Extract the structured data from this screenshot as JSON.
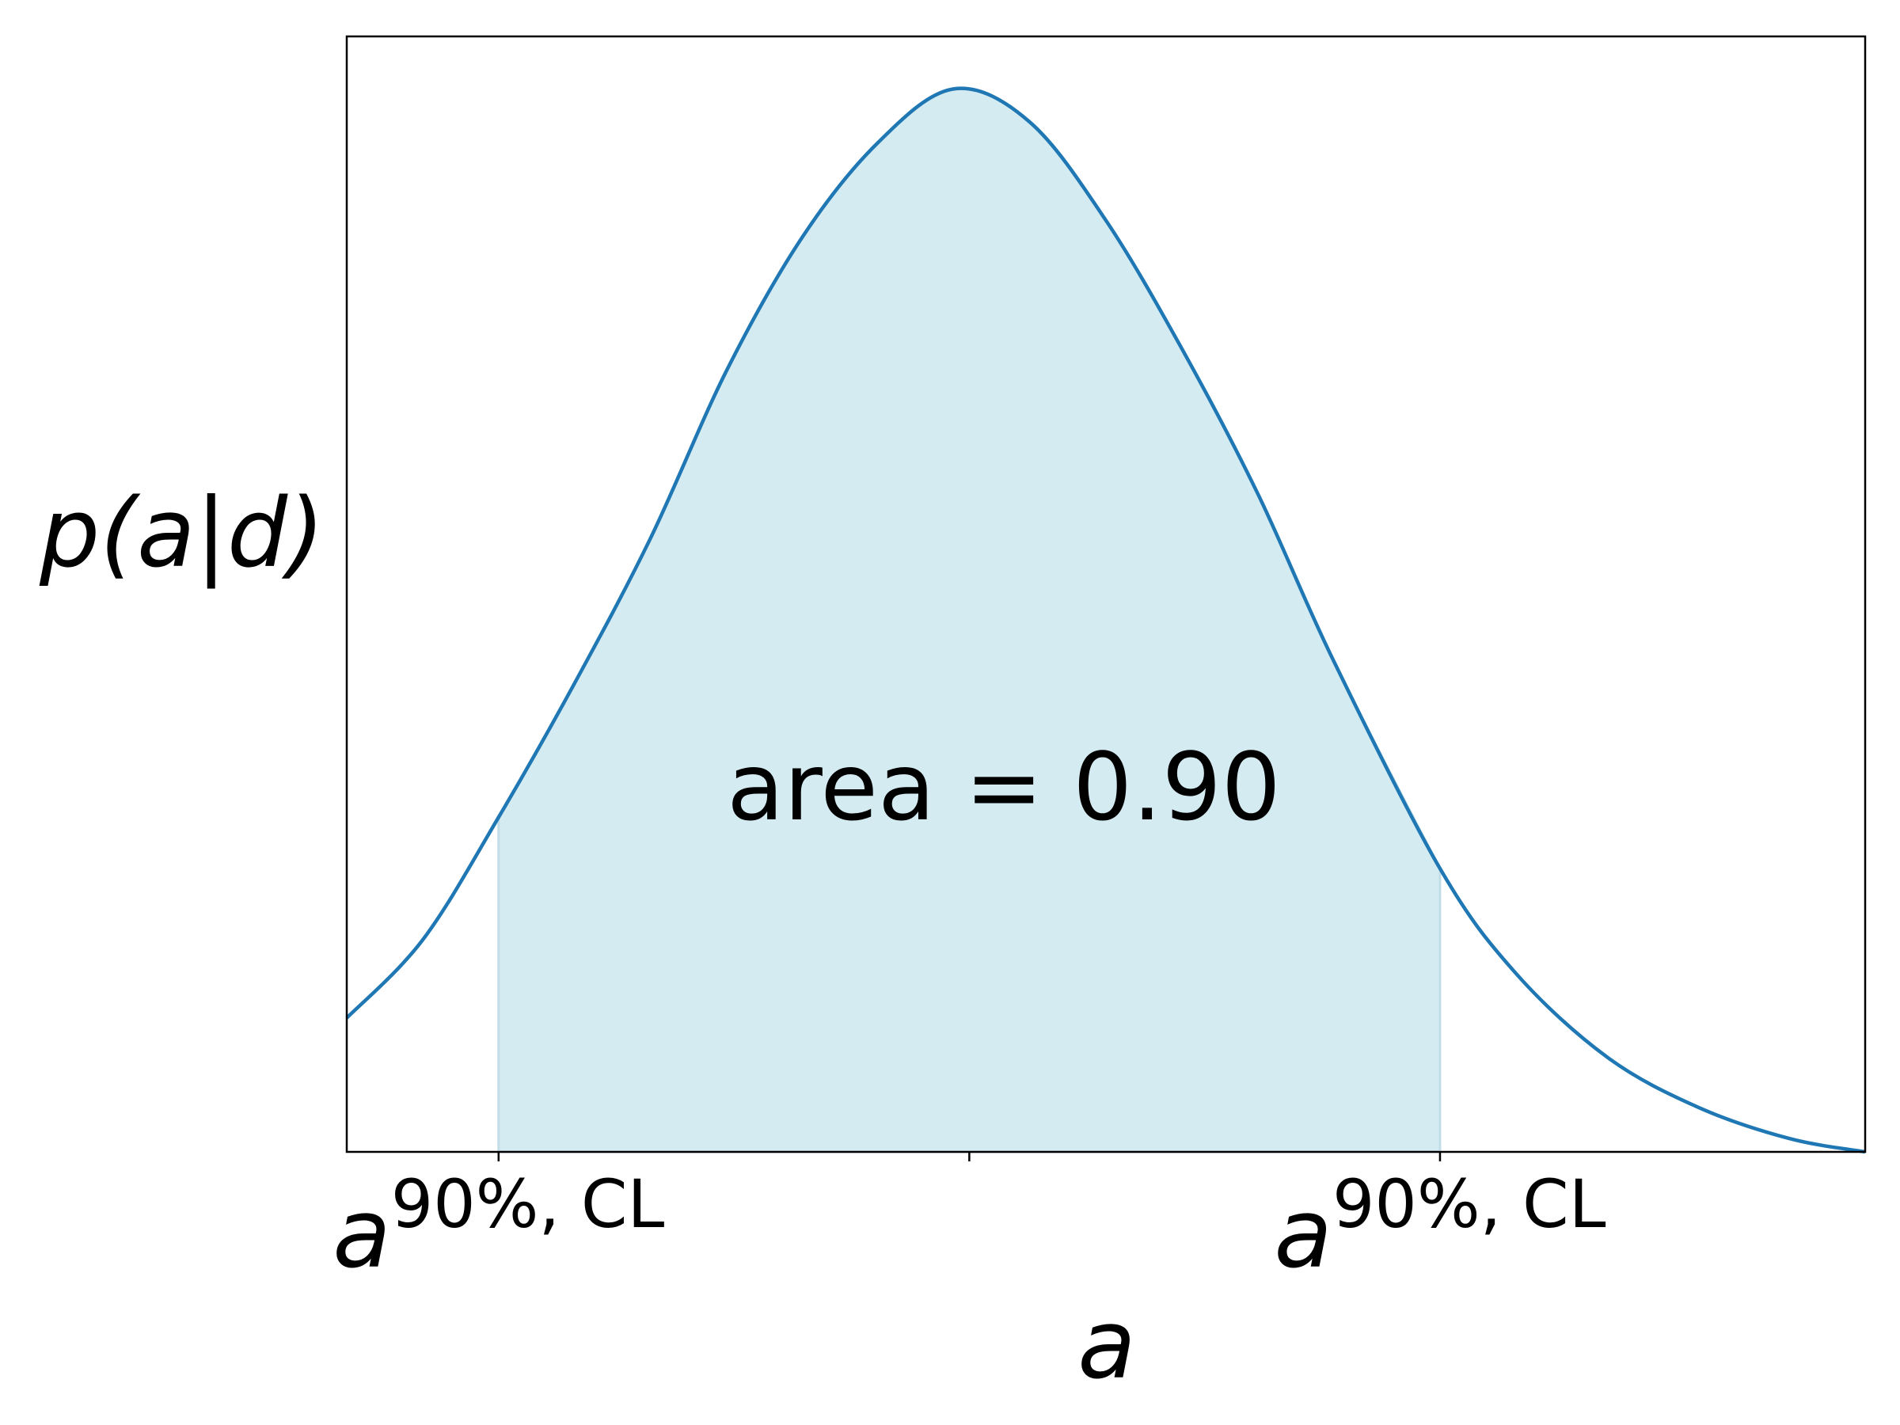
{
  "chart_data": {
    "type": "line",
    "x": [
      0,
      0.5,
      1,
      1.5,
      2,
      2.5,
      3,
      3.5,
      4,
      4.5,
      5,
      5.5,
      6,
      6.5,
      7.2,
      7.7,
      8.3,
      8.9,
      9.5,
      10
    ],
    "series": [
      {
        "color": "#1f77b4",
        "values": [
          0.12,
          0.19,
          0.3,
          0.42,
          0.55,
          0.7,
          0.82,
          0.905,
          0.953,
          0.923,
          0.835,
          0.72,
          0.59,
          0.44,
          0.254,
          0.16,
          0.085,
          0.04,
          0.012,
          0
        ]
      }
    ],
    "shade_between": [
      1,
      7.2
    ],
    "shade_color": "#d5ebf2",
    "annotation": "area = 0.90",
    "xlabel": "a",
    "ylabel": "p(a|d)",
    "xlim": [
      0,
      10
    ],
    "ylim": [
      0,
      1
    ],
    "xticks": [
      {
        "value": 1,
        "label": "a",
        "superscript": "90%, CL"
      },
      {
        "value": 4.1,
        "label": null
      },
      {
        "value": 7.2,
        "label": "a",
        "superscript": "90%, CL"
      }
    ]
  }
}
